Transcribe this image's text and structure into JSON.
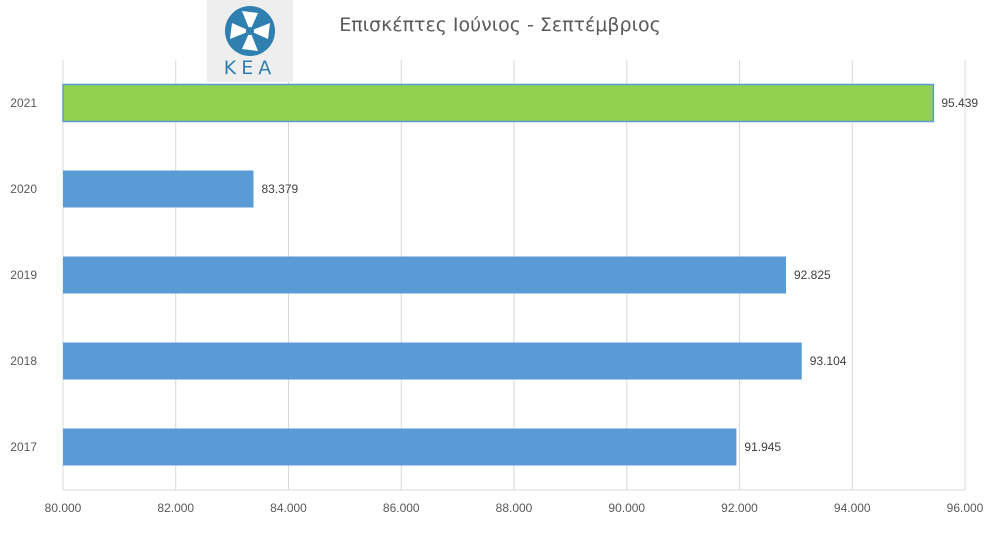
{
  "logo": {
    "text": "ΚΕΑ",
    "colors": {
      "circle": "#2f7fb0",
      "background": "#eeeeee"
    }
  },
  "chart_data": {
    "type": "bar",
    "orientation": "horizontal",
    "title": "Επισκέπτες Ιούνιος - Σεπτέμβριος",
    "categories": [
      "2021",
      "2020",
      "2019",
      "2018",
      "2017"
    ],
    "values": [
      95439,
      83379,
      92825,
      93104,
      91945
    ],
    "data_labels": [
      "95.439",
      "83.379",
      "92.825",
      "93.104",
      "91.945"
    ],
    "x_ticks": [
      80000,
      82000,
      84000,
      86000,
      88000,
      90000,
      92000,
      94000,
      96000
    ],
    "x_tick_labels": [
      "80.000",
      "82.000",
      "84.000",
      "86.000",
      "88.000",
      "90.000",
      "92.000",
      "94.000",
      "96.000"
    ],
    "xlim": [
      80000,
      96000
    ],
    "grid": true,
    "colors": {
      "default": "#5b9bd5",
      "highlight": "#92d050",
      "highlight_border": "#5b9bd5"
    },
    "highlight_category": "2021"
  }
}
